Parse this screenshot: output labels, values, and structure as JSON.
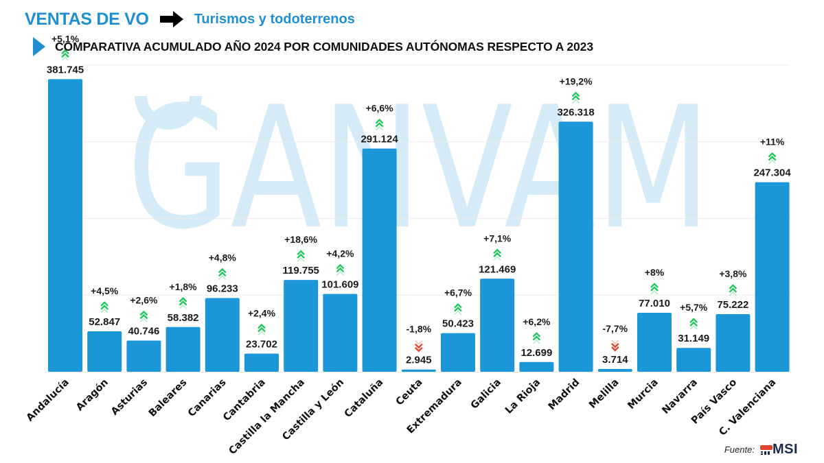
{
  "header": {
    "title": "VENTAS DE VO",
    "arrow_icon": "right-arrow-icon",
    "subtitle": "Turismos y todoterrenos",
    "heading_icon": "triangle-bullet-icon",
    "heading": "COMPARATIVA ACUMULADO AÑO 2024 POR COMUNIDADES AUTÓNOMAS RESPECTO A 2023"
  },
  "watermark": "GANVAM",
  "footer": {
    "source_label": "Fuente:",
    "source_logo_text": "MSI"
  },
  "colors": {
    "brand_blue": "#1e8fd0",
    "bar": "#1b96d6",
    "up": "#22c55e",
    "down": "#e0452f",
    "watermark": "#d6ebf8"
  },
  "chart_data": {
    "type": "bar",
    "title": "COMPARATIVA ACUMULADO AÑO 2024 POR COMUNIDADES AUTÓNOMAS RESPECTO A 2023",
    "xlabel": "",
    "ylabel": "",
    "ylim": [
      0,
      400000
    ],
    "grid": true,
    "categories": [
      "Andalucía",
      "Aragón",
      "Asturias",
      "Baleares",
      "Canarias",
      "Cantabria",
      "Castilla la Mancha",
      "Castilla y León",
      "Cataluña",
      "Ceuta",
      "Extremadura",
      "Galicia",
      "La Rioja",
      "Madrid",
      "Melilla",
      "Murcia",
      "Navarra",
      "País Vasco",
      "C. Valenciana"
    ],
    "values": [
      381745,
      52847,
      40746,
      58382,
      96233,
      23702,
      119755,
      101609,
      291124,
      2945,
      50423,
      121469,
      12699,
      326318,
      3714,
      77010,
      31149,
      75222,
      247304
    ],
    "value_labels": [
      "381.745",
      "52.847",
      "40.746",
      "58.382",
      "96.233",
      "23.702",
      "119.755",
      "101.609",
      "291.124",
      "2.945",
      "50.423",
      "121.469",
      "12.699",
      "326.318",
      "3.714",
      "77.010",
      "31.149",
      "75.222",
      "247.304"
    ],
    "change_pct": [
      5.1,
      4.5,
      2.6,
      1.8,
      4.8,
      2.4,
      18.6,
      4.2,
      6.6,
      -1.8,
      6.7,
      7.1,
      6.2,
      19.2,
      -7.7,
      8,
      5.7,
      3.8,
      11
    ],
    "change_labels": [
      "+5,1%",
      "+4,5%",
      "+2,6%",
      "+1,8%",
      "+4,8%",
      "+2,4%",
      "+18,6%",
      "+4,2%",
      "+6,6%",
      "-1,8%",
      "+6,7%",
      "+7,1%",
      "+6,2%",
      "+19,2%",
      "-7,7%",
      "+8%",
      "+5,7%",
      "+3,8%",
      "+11%"
    ]
  }
}
